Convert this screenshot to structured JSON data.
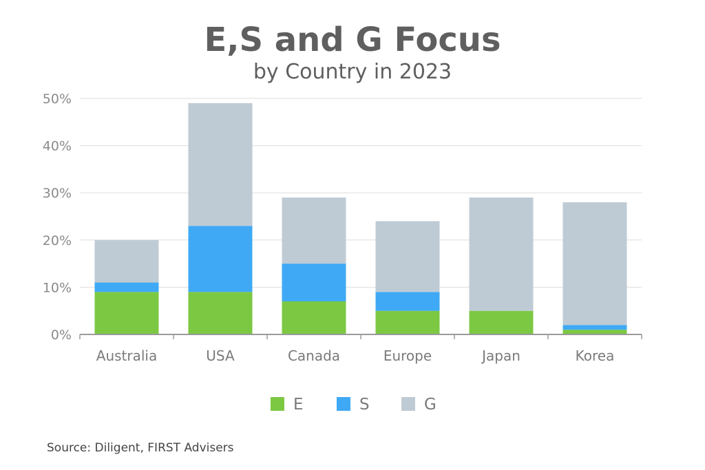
{
  "title": "E,S and G Focus",
  "subtitle": "by Country in 2023",
  "source": "Source: Diligent, FIRST Advisers",
  "colors": {
    "E": "#7cc843",
    "S": "#3fa9f5",
    "G": "#bfcbd4",
    "grid": "#dddddd",
    "axis": "#9a9a9a"
  },
  "chart_data": {
    "type": "bar",
    "stacked": true,
    "title": "E,S and G Focus",
    "subtitle": "by Country in 2023",
    "categories": [
      "Australia",
      "USA",
      "Canada",
      "Europe",
      "Japan",
      "Korea"
    ],
    "series": [
      {
        "name": "E",
        "values": [
          9,
          9,
          7,
          5,
          5,
          1
        ]
      },
      {
        "name": "S",
        "values": [
          2,
          14,
          8,
          4,
          0,
          1
        ]
      },
      {
        "name": "G",
        "values": [
          9,
          26,
          14,
          15,
          24,
          26
        ]
      }
    ],
    "yticks": [
      "0%",
      "10%",
      "20%",
      "30%",
      "40%",
      "50%"
    ],
    "ylim": [
      0,
      50
    ],
    "grid": true,
    "legend": "bottom"
  }
}
